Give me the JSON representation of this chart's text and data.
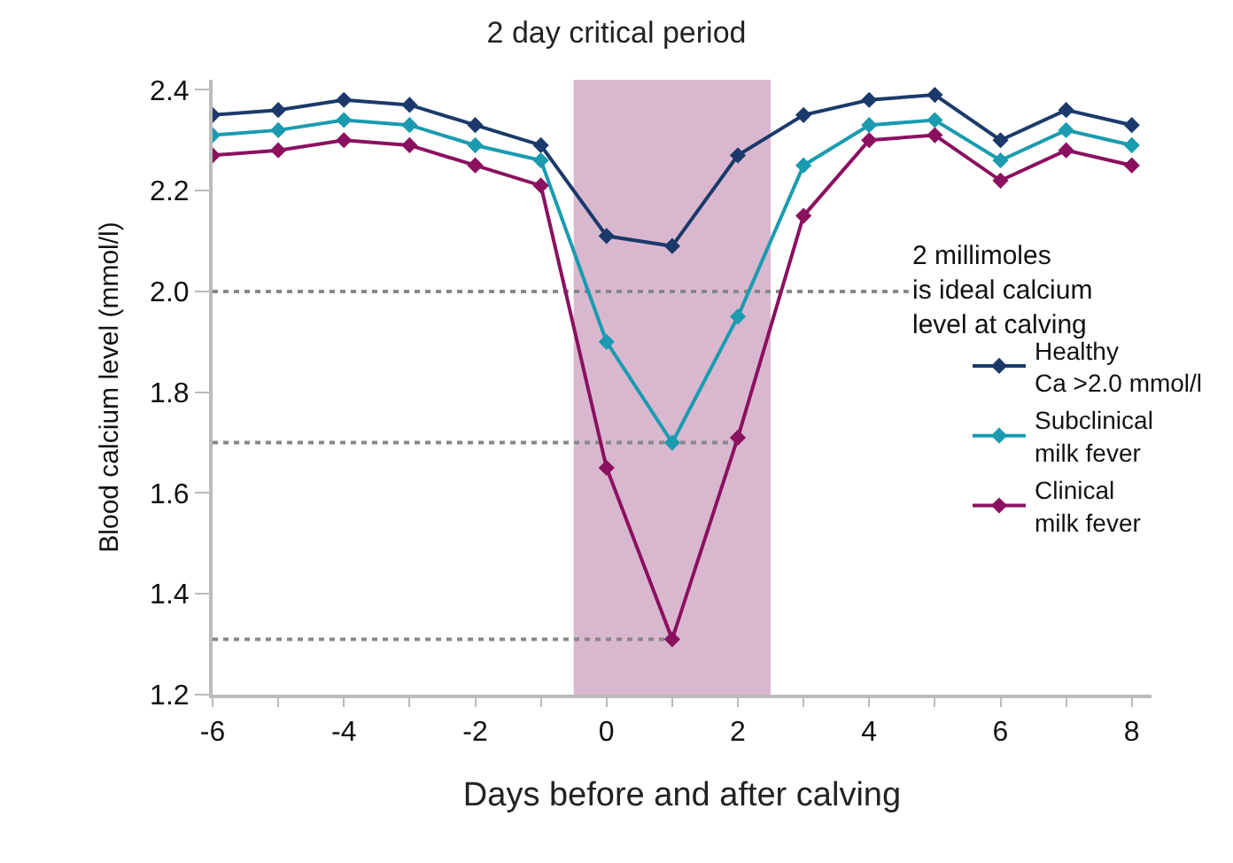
{
  "chart_data": {
    "type": "line",
    "title": "2 day critical period",
    "xlabel": "Days before and after calving",
    "ylabel": "Blood calcium level (mmol/l)",
    "x": [
      -6,
      -5,
      -4,
      -3,
      -2,
      -1,
      0,
      1,
      2,
      3,
      4,
      5,
      6,
      7,
      8
    ],
    "series": [
      {
        "name": "Healthy\nCa >2.0 mmol/l",
        "color": "#1b3a6b",
        "values": [
          2.35,
          2.36,
          2.38,
          2.37,
          2.33,
          2.29,
          2.11,
          2.09,
          2.27,
          2.35,
          2.38,
          2.39,
          2.3,
          2.36,
          2.33
        ]
      },
      {
        "name": "Subclinical\nmilk fever",
        "color": "#1a9bb0",
        "values": [
          2.31,
          2.32,
          2.34,
          2.33,
          2.29,
          2.26,
          1.9,
          1.7,
          1.95,
          2.25,
          2.33,
          2.34,
          2.26,
          2.32,
          2.29
        ]
      },
      {
        "name": "Clinical\nmilk fever",
        "color": "#8b1060",
        "values": [
          2.27,
          2.28,
          2.3,
          2.29,
          2.25,
          2.21,
          1.65,
          1.31,
          1.71,
          2.15,
          2.3,
          2.31,
          2.22,
          2.28,
          2.25
        ]
      }
    ],
    "xlim": [
      -6,
      8.3
    ],
    "ylim": [
      1.2,
      2.42
    ],
    "xticks": [
      -6,
      {
        "value": -5,
        "label": null
      },
      -4,
      {
        "value": -3,
        "label": null
      },
      -2,
      {
        "value": -1,
        "label": null
      },
      0,
      {
        "value": 1,
        "label": null
      },
      2,
      {
        "value": 3,
        "label": null
      },
      4,
      {
        "value": 5,
        "label": null
      },
      6,
      {
        "value": 7,
        "label": null
      },
      8
    ],
    "yticks": [
      {
        "value": 1.2,
        "label": "1.2"
      },
      {
        "value": 1.4,
        "label": "1.4"
      },
      {
        "value": 1.6,
        "label": "1.6"
      },
      {
        "value": 1.8,
        "label": "1.8"
      },
      {
        "value": 2.0,
        "label": "2.0"
      },
      {
        "value": 2.2,
        "label": "2.2"
      },
      {
        "value": 2.4,
        "label": "2.4"
      }
    ],
    "bands": [
      {
        "axis": "x",
        "from": -0.5,
        "to": 2.5,
        "color": "#d9b8cf"
      }
    ],
    "ref_lines": [
      {
        "axis": "y",
        "value": 2.0,
        "label": "2 millimoles\nis ideal calcium\nlevel at calving",
        "color": "#888888",
        "line_style": "dotted"
      },
      {
        "axis": "y",
        "value": 1.7,
        "color": "#888888",
        "line_style": "dotted"
      },
      {
        "axis": "y",
        "value": 1.31,
        "color": "#888888",
        "line_style": "dotted"
      }
    ],
    "marker": "diamond",
    "line_style": "solid",
    "grid": false,
    "legend": "right"
  }
}
